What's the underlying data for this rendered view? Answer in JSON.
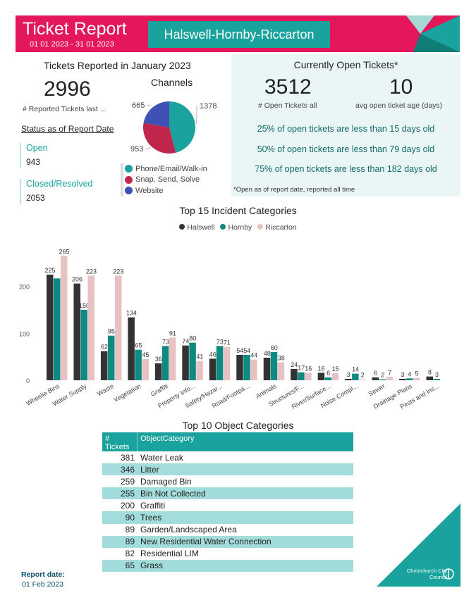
{
  "header": {
    "title": "Ticket Report",
    "dates": "01 01 2023 - 31 01 2023",
    "region": "Halswell-Hornby-Riccarton"
  },
  "reported": {
    "title": "Tickets Reported in January 2023",
    "count": "2996",
    "count_label": "# Reported Tickets last ..."
  },
  "status": {
    "title": "Status as of Report Date",
    "items": [
      {
        "label": "Open",
        "value": "943"
      },
      {
        "label": "Closed/Resolved",
        "value": "2053"
      }
    ]
  },
  "channels": {
    "title": "Channels",
    "slices": [
      {
        "name": "Phone/Email/Walk-in",
        "value": 1378,
        "label": "1378",
        "color": "#1aa39e"
      },
      {
        "name": "Snap, Send, Solve",
        "value": 953,
        "label": "953",
        "color": "#c0254b"
      },
      {
        "name": "Website",
        "value": 665,
        "label": "665",
        "color": "#3f51b5"
      }
    ]
  },
  "open_tickets": {
    "title": "Currently Open Tickets*",
    "count": "3512",
    "count_label": "# Open Tickets all",
    "age": "10",
    "age_label": "avg open ticket age (days)",
    "lines": [
      "25% of open tickets are less than 15 days old",
      "50% of open tickets are less than 79 days old",
      "75% of open tickets are less than 182 days old"
    ],
    "note": "*Open as of report date, reported all time"
  },
  "chart_data": {
    "type": "bar",
    "title": "Top 15 Incident Categories",
    "categories": [
      "Wheelie Bins",
      "Water Supply",
      "Waste",
      "Vegetation",
      "Graffiti",
      "Property Info...",
      "Safety/Hazar...",
      "Road/Footpa...",
      "Animals",
      "Structures/F...",
      "River/Surface...",
      "Noise Compl...",
      "Sewer",
      "Drainage Plans",
      "Pests and Ins..."
    ],
    "series": [
      {
        "name": "Halswell",
        "color": "#333333",
        "values": [
          225,
          206,
          62,
          134,
          36,
          74,
          46,
          54,
          48,
          24,
          16,
          3,
          6,
          3,
          8
        ]
      },
      {
        "name": "Hornby",
        "color": "#0f8a83",
        "values": [
          217,
          150,
          95,
          65,
          73,
          80,
          73,
          54,
          60,
          17,
          6,
          14,
          2,
          4,
          3
        ]
      },
      {
        "name": "Riccarton",
        "color": "#e8c2c2",
        "values": [
          265,
          223,
          223,
          45,
          91,
          41,
          71,
          44,
          38,
          16,
          15,
          2,
          7,
          5,
          null
        ]
      }
    ],
    "bar_labels": [
      [
        "225",
        null,
        "265"
      ],
      [
        "206",
        "150",
        "223"
      ],
      [
        "62",
        "95",
        "223"
      ],
      [
        "134",
        "65",
        "45"
      ],
      [
        "36",
        "73",
        "91"
      ],
      [
        "74",
        "80",
        "41"
      ],
      [
        "46",
        "73",
        "71"
      ],
      [
        "54",
        "54",
        "44"
      ],
      [
        "48",
        "60",
        "38"
      ],
      [
        "24",
        "17",
        "16"
      ],
      [
        "16",
        "6",
        "15"
      ],
      [
        "3",
        "14",
        "2"
      ],
      [
        "6",
        "2",
        "7"
      ],
      [
        "3",
        "4",
        "5"
      ],
      [
        "8",
        "3",
        null
      ]
    ],
    "yticks": [
      0,
      100,
      200
    ],
    "ylim": [
      0,
      300
    ],
    "grid": false,
    "legend": "top-center"
  },
  "objects": {
    "title": "Top 10 Object Categories",
    "col1": "# Tickets",
    "col2": "ObjectCategory",
    "rows": [
      {
        "n": "381",
        "cat": "Water Leak"
      },
      {
        "n": "346",
        "cat": "Litter"
      },
      {
        "n": "259",
        "cat": "Damaged Bin"
      },
      {
        "n": "255",
        "cat": "Bin Not Collected"
      },
      {
        "n": "200",
        "cat": "Graffiti"
      },
      {
        "n": "90",
        "cat": "Trees"
      },
      {
        "n": "89",
        "cat": "Garden/Landscaped Area"
      },
      {
        "n": "89",
        "cat": "New Residential Water Connection"
      },
      {
        "n": "82",
        "cat": "Residential LIM"
      },
      {
        "n": "65",
        "cat": "Grass"
      }
    ]
  },
  "footer": {
    "label": "Report date:",
    "date": "01 Feb 2023",
    "logo_text": "Christchurch City Council"
  }
}
